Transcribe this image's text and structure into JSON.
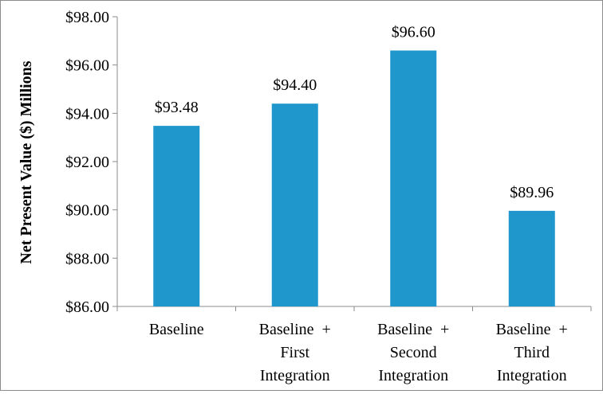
{
  "chart_data": {
    "type": "bar",
    "title": "",
    "xlabel": "",
    "ylabel": "Net Present Value ($) Millions",
    "ylim": [
      86,
      98
    ],
    "yticks": [
      86,
      88,
      90,
      92,
      94,
      96,
      98
    ],
    "ytick_labels": [
      "$86.00",
      "$88.00",
      "$90.00",
      "$92.00",
      "$94.00",
      "$96.00",
      "$98.00"
    ],
    "categories": [
      [
        "Baseline"
      ],
      [
        "Baseline  +",
        "First",
        "Integration"
      ],
      [
        "Baseline  +",
        "Second",
        "Integration"
      ],
      [
        "Baseline  +",
        "Third",
        "Integration"
      ]
    ],
    "values": [
      93.48,
      94.4,
      96.6,
      89.96
    ],
    "data_labels": [
      "$93.48",
      "$94.40",
      "$96.60",
      "$89.96"
    ],
    "bar_color": "#1f97cc",
    "grid": false,
    "legend": "none"
  }
}
